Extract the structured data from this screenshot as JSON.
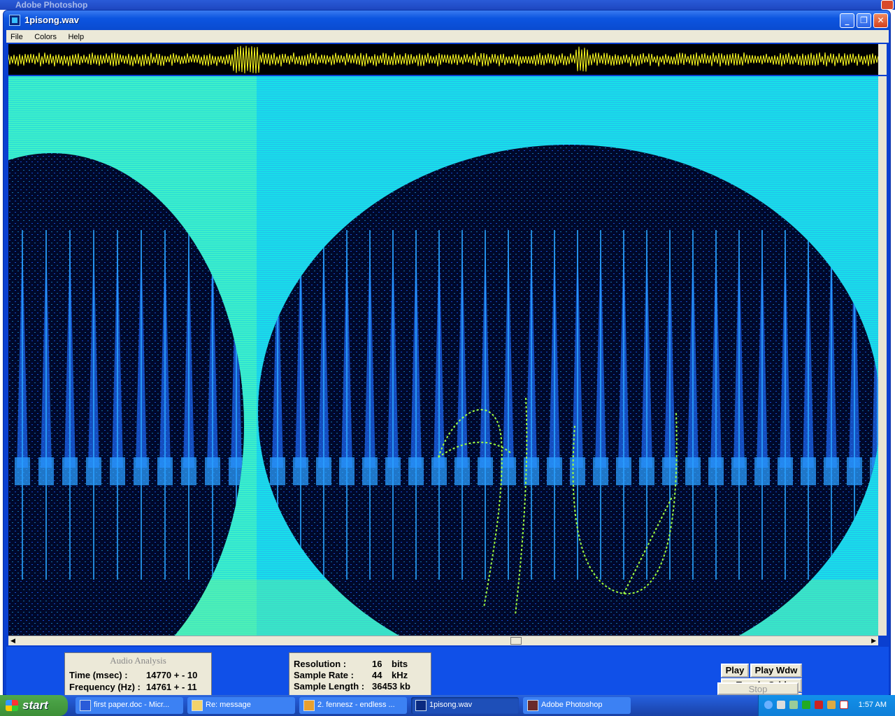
{
  "bg_window": {
    "title": "Adobe Photoshop"
  },
  "window": {
    "title": "1pisong.wav",
    "buttons": {
      "minimize": "_",
      "maximize": "❐",
      "close": "✕"
    }
  },
  "menu": [
    "File",
    "Colors",
    "Help"
  ],
  "analysis": {
    "header": "Audio Analysis",
    "time_label": "Time (msec) :",
    "time_value": "14770 + - 10",
    "freq_label": "Frequency (Hz) :",
    "freq_value": "14761 + - 11"
  },
  "info": {
    "resolution_label": "Resolution :",
    "resolution_value": "16",
    "resolution_unit": "bits",
    "rate_label": "Sample Rate :",
    "rate_value": "44",
    "rate_unit": "kHz",
    "length_label": "Sample Length :",
    "length_value": "36453 kb"
  },
  "controls": {
    "play": "Play",
    "play_wdw": "Play Wdw",
    "toggle_grid": "Toggle Grid",
    "stop": "Stop"
  },
  "taskbar": {
    "start": "start",
    "tasks": [
      "first paper.doc - Micr...",
      "Re: message",
      "2. fennesz - endless ...",
      "1pisong.wav",
      "Adobe Photoshop"
    ],
    "clock": "1:57 AM"
  },
  "colors": {
    "spectrogram_bg": "#17e0e6",
    "wave": "#ffff20",
    "window_blue": "#1050e8"
  }
}
